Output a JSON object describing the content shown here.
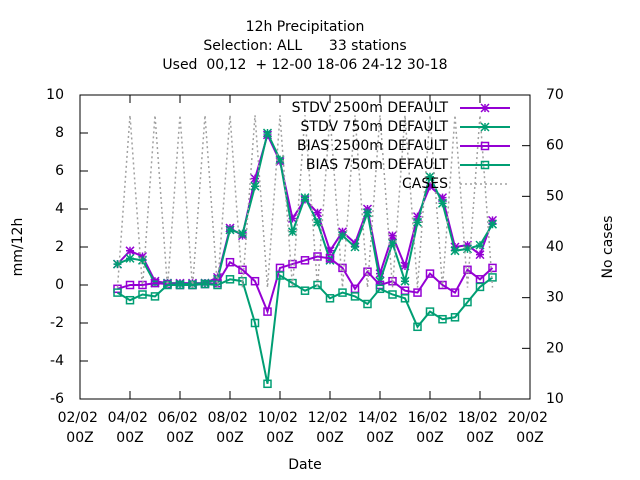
{
  "chart_data": {
    "type": "line",
    "title": "12h Precipitation",
    "subtitle": [
      "Selection: ALL      33 stations",
      "Used  00,12  + 12-00 18-06 24-12 30-18"
    ],
    "xlabel": "Date",
    "ylabel": "mm/12h",
    "y2label": "No cases",
    "x": [
      "03/02 12Z",
      "04/02 00Z",
      "04/02 12Z",
      "05/02 00Z",
      "05/02 12Z",
      "06/02 00Z",
      "06/02 12Z",
      "07/02 00Z",
      "07/02 12Z",
      "08/02 00Z",
      "08/02 12Z",
      "09/02 00Z",
      "09/02 12Z",
      "10/02 00Z",
      "10/02 12Z",
      "11/02 00Z",
      "11/02 12Z",
      "12/02 00Z",
      "12/02 12Z",
      "13/02 00Z",
      "13/02 12Z",
      "14/02 00Z",
      "14/02 12Z",
      "15/02 00Z",
      "15/02 12Z",
      "16/02 00Z",
      "16/02 12Z",
      "17/02 00Z",
      "17/02 12Z",
      "18/02 00Z",
      "18/02 12Z"
    ],
    "xlim": [
      "02/02 00Z",
      "20/02 00Z"
    ],
    "xticks": [
      "02/02 00Z",
      "04/02 00Z",
      "06/02 00Z",
      "08/02 00Z",
      "10/02 00Z",
      "12/02 00Z",
      "14/02 00Z",
      "16/02 00Z",
      "18/02 00Z",
      "20/02 00Z"
    ],
    "ylim": [
      -6,
      10
    ],
    "yticks": [
      -6,
      -4,
      -2,
      0,
      2,
      4,
      6,
      8,
      10
    ],
    "y2lim": [
      10,
      70
    ],
    "y2ticks": [
      10,
      20,
      30,
      40,
      50,
      60,
      70
    ],
    "legend": "top-right",
    "series": [
      {
        "name": "STDV 2500m DEFAULT",
        "color": "#9400d3",
        "marker": "star",
        "values": [
          1.1,
          1.8,
          1.5,
          0.2,
          0.1,
          0.1,
          0.1,
          0.1,
          0.4,
          3.0,
          2.6,
          5.6,
          7.9,
          6.5,
          3.5,
          4.5,
          3.8,
          1.8,
          2.8,
          2.2,
          4.0,
          0.6,
          2.6,
          1.0,
          3.6,
          5.2,
          4.6,
          2.0,
          2.1,
          1.6,
          3.4
        ]
      },
      {
        "name": "STDV 750m DEFAULT",
        "color": "#009e73",
        "marker": "star",
        "values": [
          1.1,
          1.4,
          1.3,
          0.1,
          0.1,
          0.05,
          0.05,
          0.1,
          0.3,
          2.9,
          2.7,
          5.2,
          8.0,
          6.6,
          2.8,
          4.6,
          3.3,
          1.3,
          2.6,
          2.0,
          3.8,
          0.2,
          2.2,
          0.2,
          3.3,
          5.7,
          4.3,
          1.8,
          1.9,
          2.1,
          3.2
        ]
      },
      {
        "name": "BIAS 2500m DEFAULT",
        "color": "#9400d3",
        "marker": "square",
        "values": [
          -0.2,
          0.0,
          0.0,
          0.1,
          0.05,
          0.0,
          0.0,
          0.05,
          0.1,
          1.2,
          0.8,
          0.2,
          -1.4,
          0.9,
          1.1,
          1.3,
          1.5,
          1.4,
          0.9,
          -0.2,
          0.7,
          0.0,
          0.2,
          -0.3,
          -0.4,
          0.6,
          0.0,
          -0.4,
          0.8,
          0.3,
          0.9
        ]
      },
      {
        "name": "BIAS 750m DEFAULT",
        "color": "#009e73",
        "marker": "square",
        "values": [
          -0.4,
          -0.8,
          -0.5,
          -0.6,
          0.0,
          0.0,
          0.0,
          0.05,
          0.0,
          0.3,
          0.2,
          -2.0,
          -5.2,
          0.5,
          0.1,
          -0.3,
          0.0,
          -0.7,
          -0.4,
          -0.6,
          -1.0,
          -0.2,
          -0.5,
          -0.7,
          -2.2,
          -1.4,
          -1.8,
          -1.7,
          -0.9,
          -0.1,
          0.4
        ]
      },
      {
        "name": "CASES",
        "color": "#a0a0a0",
        "marker": "none",
        "axis": "y2",
        "dash": true,
        "values": [
          32,
          66,
          32,
          66,
          32,
          66,
          32,
          66,
          32,
          66,
          32,
          66,
          32,
          66,
          32,
          66,
          32,
          66,
          32,
          66,
          32,
          66,
          32,
          66,
          32,
          66,
          32,
          66,
          32,
          66,
          32
        ]
      }
    ]
  }
}
